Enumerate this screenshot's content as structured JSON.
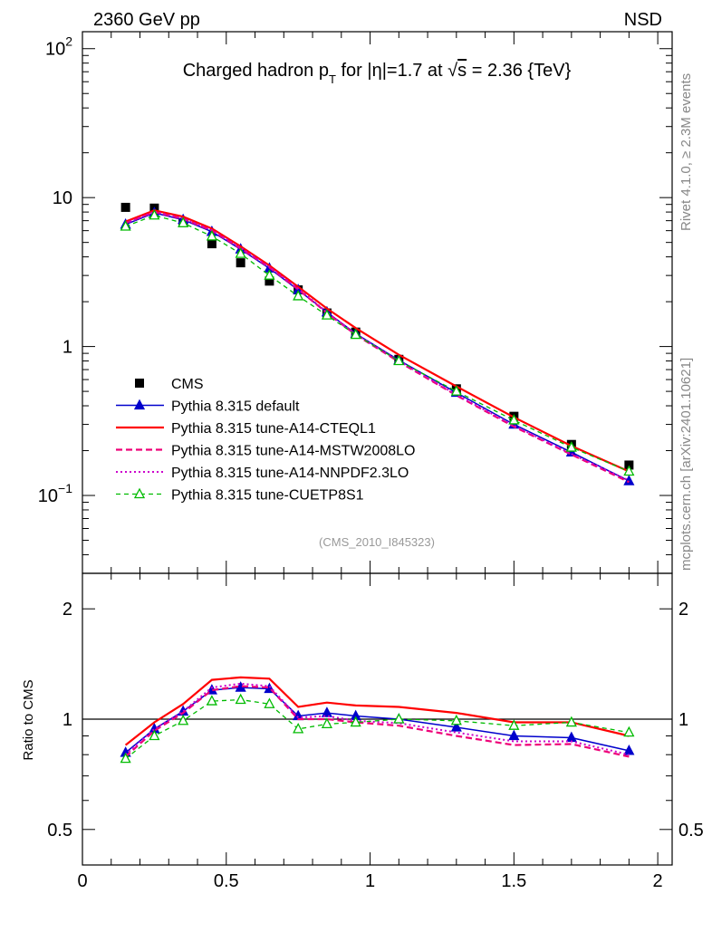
{
  "header": {
    "left": "2360 GeV pp",
    "right": "NSD",
    "side_top": "Rivet 4.1.0, ≥ 2.3M events",
    "side_bottom": "mcplots.cern.ch [arXiv:2401.10621]"
  },
  "chart_data": [
    {
      "panel": "main",
      "type": "line",
      "title": "Charged hadron p_T for |η|=1.7 at √s = 2.36 {TeV}",
      "title_parts": {
        "pre": "Charged hadron p",
        "sub": "T",
        "mid": " for |η|=1.7 at ",
        "sqrt": "√",
        "s_var": "s",
        "post": " = 2.36 {TeV}"
      },
      "watermark": "(CMS_2010_I845323)",
      "xlabel": "",
      "ylabel": "",
      "yscale": "log",
      "xlim": [
        0,
        2.05
      ],
      "ylim": [
        0.03,
        130
      ],
      "ytick_labels": [
        {
          "value": 0.1,
          "base": "10",
          "exp": "−1"
        },
        {
          "value": 1,
          "base": "1",
          "exp": ""
        },
        {
          "value": 10,
          "base": "10",
          "exp": ""
        },
        {
          "value": 100,
          "base": "10",
          "exp": "2"
        }
      ],
      "x": [
        0.15,
        0.25,
        0.35,
        0.45,
        0.55,
        0.65,
        0.75,
        0.85,
        0.95,
        1.1,
        1.3,
        1.5,
        1.7,
        1.9
      ],
      "series": [
        {
          "name": "CMS",
          "style": "data",
          "color": "#000000",
          "values": [
            8.6,
            8.5,
            6.8,
            4.9,
            3.65,
            2.75,
            2.4,
            1.68,
            1.25,
            0.82,
            0.52,
            0.34,
            0.22,
            0.16
          ]
        },
        {
          "name": "Pythia 8.315 default",
          "style": "solid-triangle",
          "color": "#0000cc",
          "values": [
            6.6,
            7.9,
            7.1,
            5.9,
            4.5,
            3.35,
            2.4,
            1.7,
            1.22,
            0.81,
            0.49,
            0.3,
            0.195,
            0.125
          ]
        },
        {
          "name": "Pythia 8.315 tune-A14-CTEQL1",
          "style": "solid",
          "color": "#ff0000",
          "values": [
            6.9,
            8.2,
            7.45,
            6.2,
            4.7,
            3.5,
            2.52,
            1.8,
            1.33,
            0.88,
            0.54,
            0.335,
            0.215,
            0.145
          ]
        },
        {
          "name": "Pythia 8.315 tune-A14-MSTW2008LO",
          "style": "dashed",
          "color": "#ee0077",
          "values": [
            6.75,
            8.0,
            7.2,
            6.0,
            4.55,
            3.4,
            2.42,
            1.68,
            1.2,
            0.79,
            0.47,
            0.29,
            0.188,
            0.123
          ]
        },
        {
          "name": "Pythia 8.315 tune-A14-NNPDF2.3LO",
          "style": "dotted",
          "color": "#cc00cc",
          "values": [
            6.7,
            8.05,
            7.25,
            6.05,
            4.6,
            3.42,
            2.45,
            1.7,
            1.21,
            0.8,
            0.475,
            0.295,
            0.19,
            0.126
          ]
        },
        {
          "name": "Pythia 8.315 tune-CUETP8S1",
          "style": "dashed-open-triangle",
          "color": "#00bb00",
          "values": [
            6.4,
            7.6,
            6.75,
            5.5,
            4.2,
            3.0,
            2.18,
            1.62,
            1.2,
            0.8,
            0.5,
            0.32,
            0.21,
            0.145
          ]
        }
      ],
      "legend_position": "bottom-left"
    },
    {
      "panel": "ratio",
      "type": "line",
      "ylabel": "Ratio to CMS",
      "yscale": "log",
      "xlim": [
        0,
        2.05
      ],
      "ylim": [
        0.4,
        2.5
      ],
      "reference_line": 1,
      "xtick_labels": [
        {
          "value": 0,
          "label": "0"
        },
        {
          "value": 0.5,
          "label": "0.5"
        },
        {
          "value": 1,
          "label": "1"
        },
        {
          "value": 1.5,
          "label": "1.5"
        },
        {
          "value": 2,
          "label": "2"
        }
      ],
      "ytick_labels": [
        {
          "value": 0.5,
          "label": "0.5"
        },
        {
          "value": 1,
          "label": "1"
        },
        {
          "value": 2,
          "label": "2"
        }
      ],
      "x": [
        0.15,
        0.25,
        0.35,
        0.45,
        0.55,
        0.65,
        0.75,
        0.85,
        0.95,
        1.1,
        1.3,
        1.5,
        1.7,
        1.9
      ],
      "series": [
        {
          "name": "Pythia 8.315 default",
          "style": "solid-triangle",
          "color": "#0000cc",
          "values": [
            0.81,
            0.94,
            1.05,
            1.2,
            1.22,
            1.21,
            1.02,
            1.04,
            1.02,
            1.0,
            0.95,
            0.9,
            0.89,
            0.82
          ]
        },
        {
          "name": "Pythia 8.315 tune-A14-CTEQL1",
          "style": "solid",
          "color": "#ff0000",
          "values": [
            0.85,
            0.98,
            1.1,
            1.28,
            1.3,
            1.29,
            1.08,
            1.11,
            1.09,
            1.08,
            1.04,
            0.98,
            0.98,
            0.9
          ]
        },
        {
          "name": "Pythia 8.315 tune-A14-MSTW2008LO",
          "style": "dashed",
          "color": "#ee0077",
          "values": [
            0.79,
            0.93,
            1.04,
            1.2,
            1.23,
            1.22,
            1.0,
            1.0,
            0.98,
            0.96,
            0.9,
            0.85,
            0.855,
            0.79
          ]
        },
        {
          "name": "Pythia 8.315 tune-A14-NNPDF2.3LO",
          "style": "dotted",
          "color": "#cc00cc",
          "values": [
            0.8,
            0.94,
            1.05,
            1.22,
            1.25,
            1.23,
            1.01,
            1.02,
            0.99,
            0.975,
            0.92,
            0.87,
            0.87,
            0.8
          ]
        },
        {
          "name": "Pythia 8.315 tune-CUETP8S1",
          "style": "dashed-open-triangle",
          "color": "#00bb00",
          "values": [
            0.78,
            0.9,
            0.99,
            1.12,
            1.13,
            1.1,
            0.94,
            0.97,
            0.98,
            1.0,
            0.99,
            0.96,
            0.98,
            0.92
          ]
        }
      ]
    }
  ]
}
